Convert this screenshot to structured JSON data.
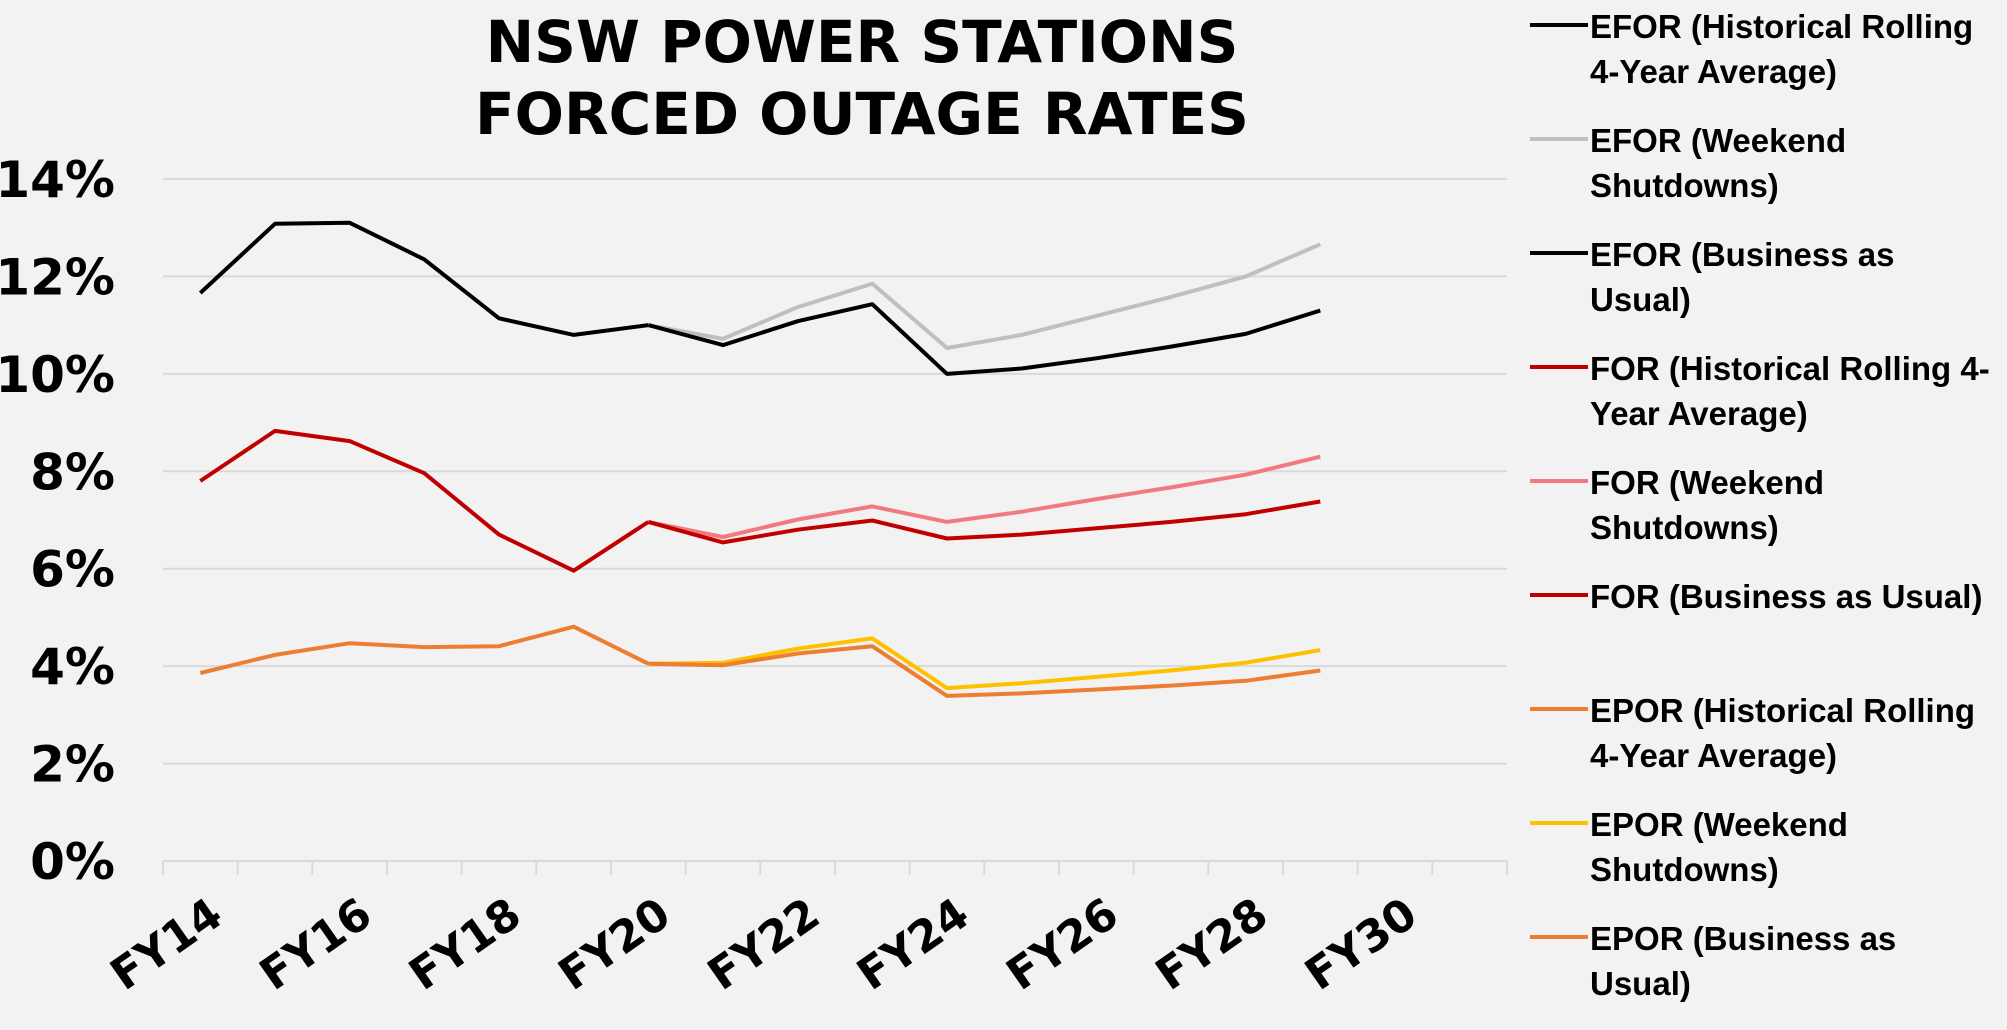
{
  "chart_data": {
    "type": "line",
    "title": "NSW POWER STATIONS\nFORCED OUTAGE RATES",
    "categories": [
      "FY14",
      null,
      "FY16",
      null,
      "FY18",
      null,
      "FY20",
      null,
      "FY22",
      null,
      "FY24",
      null,
      "FY26",
      null,
      "FY28",
      null,
      "FY30",
      null
    ],
    "ylim": [
      0,
      14
    ],
    "yticks": [
      {
        "value": 0,
        "label": "0%"
      },
      {
        "value": 2,
        "label": "2%"
      },
      {
        "value": 4,
        "label": "4%"
      },
      {
        "value": 6,
        "label": "6%"
      },
      {
        "value": 8,
        "label": "8%"
      },
      {
        "value": 10,
        "label": "10%"
      },
      {
        "value": 12,
        "label": "12%"
      },
      {
        "value": 14,
        "label": "14%"
      }
    ],
    "grid": true,
    "legend": "right",
    "series": [
      {
        "name": "EFOR (Historical Rolling 4-Year Average)",
        "color": "#000000",
        "values": [
          11.66,
          13.08,
          13.1,
          12.35,
          11.14,
          10.8,
          11.0,
          null,
          null,
          null,
          null,
          null,
          null,
          null,
          null,
          null,
          null,
          null
        ]
      },
      {
        "name": "EFOR (Weekend Shutdowns)",
        "color": "#bfbfbf",
        "values": [
          null,
          null,
          null,
          null,
          null,
          null,
          11.0,
          10.72,
          11.37,
          11.85,
          10.53,
          10.8,
          11.19,
          11.58,
          12.0,
          12.66,
          null,
          null
        ]
      },
      {
        "name": "EFOR (Business as Usual)",
        "color": "#000000",
        "values": [
          null,
          null,
          null,
          null,
          null,
          null,
          11.0,
          10.59,
          11.08,
          11.43,
          10.0,
          10.11,
          10.32,
          10.56,
          10.82,
          11.3,
          null,
          null
        ]
      },
      {
        "name": "FOR (Historical Rolling 4-Year Average)",
        "color": "#c00000",
        "values": [
          7.8,
          8.83,
          8.62,
          7.96,
          6.7,
          5.96,
          6.96,
          null,
          null,
          null,
          null,
          null,
          null,
          null,
          null,
          null,
          null,
          null
        ]
      },
      {
        "name": "FOR (Weekend Shutdowns)",
        "color": "#f07a80",
        "values": [
          null,
          null,
          null,
          null,
          null,
          null,
          6.96,
          6.65,
          7.01,
          7.28,
          6.96,
          7.17,
          7.43,
          7.67,
          7.93,
          8.3,
          null,
          null
        ]
      },
      {
        "name": "FOR (Business as Usual)",
        "color": "#c00000",
        "values": [
          null,
          null,
          null,
          null,
          null,
          null,
          6.96,
          6.54,
          6.8,
          6.99,
          6.62,
          6.7,
          6.83,
          6.96,
          7.12,
          7.38,
          null,
          null
        ]
      },
      {
        "name": "EPOR (Historical Rolling 4-Year Average)",
        "color": "#ed7d31",
        "values": [
          3.86,
          4.23,
          4.47,
          4.39,
          4.41,
          4.81,
          4.05,
          null,
          null,
          null,
          null,
          null,
          null,
          null,
          null,
          null,
          null,
          null
        ]
      },
      {
        "name": "EPOR (Weekend Shutdowns)",
        "color": "#ffc000",
        "values": [
          null,
          null,
          null,
          null,
          null,
          null,
          4.05,
          4.07,
          4.36,
          4.57,
          3.55,
          3.65,
          3.78,
          3.91,
          4.07,
          4.33,
          null,
          null
        ]
      },
      {
        "name": "EPOR (Business as Usual)",
        "color": "#ed7d31",
        "values": [
          null,
          null,
          null,
          null,
          null,
          null,
          4.05,
          4.02,
          4.26,
          4.41,
          3.39,
          3.44,
          3.52,
          3.6,
          3.7,
          3.91,
          null,
          null
        ]
      }
    ]
  }
}
